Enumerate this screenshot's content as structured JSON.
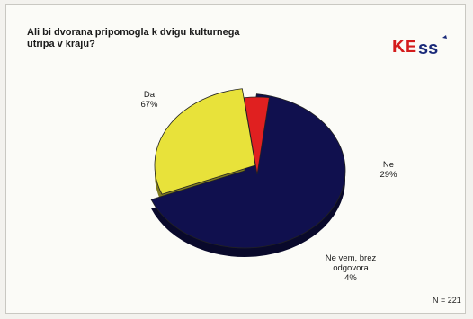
{
  "header": {
    "title": "Ali bi dvorana pripomogla k dvigu kulturnega utripa v kraju?",
    "logo_text": "KEsS"
  },
  "footer": {
    "n_label": "N = 221"
  },
  "chart_data": {
    "type": "pie",
    "title": "Ali bi dvorana pripomogla k dvigu kulturnega utripa v kraju?",
    "slices": [
      {
        "label": "Da",
        "value": 67,
        "value_label": "67%",
        "color": "#10104e"
      },
      {
        "label": "Ne",
        "value": 29,
        "value_label": "29%",
        "color": "#e8e23a"
      },
      {
        "label": "Ne vem, brez odgovora",
        "value": 4,
        "value_label": "4%",
        "color": "#e02020"
      }
    ],
    "n": 221
  },
  "colors": {
    "background": "#fbfbf7",
    "logo_red": "#d41c1c",
    "logo_blue": "#1a2a7a"
  }
}
